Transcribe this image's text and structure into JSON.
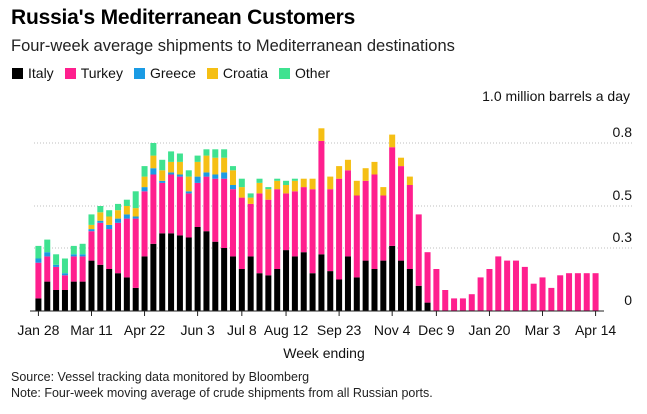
{
  "title": "Russia's Mediterranean Customers",
  "subtitle": "Four-week average shipments to Mediterranean destinations",
  "unit_label": "1.0 million barrels a day",
  "source": "Source: Vessel tracking data monitored by Bloomberg",
  "note": "Note: Four-week moving average of crude shipments from all Russian ports.",
  "colors": {
    "Italy": "#000000",
    "Turkey": "#ff1f8e",
    "Greece": "#1a9be4",
    "Croatia": "#f5bf14",
    "Other": "#3fe290",
    "gridline": "#bfbfbf",
    "baseline": "#222222"
  },
  "chart_data": {
    "type": "bar",
    "stacked": true,
    "title": "Russia's Mediterranean Customers",
    "subtitle": "Four-week average shipments to Mediterranean destinations",
    "xlabel": "Week ending",
    "ylabel": "1.0 million barrels a day",
    "ylim": [
      0,
      1.0
    ],
    "y_ticks": [
      0,
      0.3,
      0.5,
      0.8
    ],
    "y_tick_labels": [
      "0",
      "0.3",
      "0.5",
      "0.8"
    ],
    "x_tick_labels": [
      "Jan 28",
      "Mar 11",
      "Apr 22",
      "Jun 3",
      "Jul 8",
      "Aug 12",
      "Sep 23",
      "Nov 4",
      "Dec 9",
      "Jan 20",
      "Mar 3",
      "Apr 14"
    ],
    "x_tick_indices": [
      0,
      6,
      12,
      18,
      23,
      28,
      34,
      40,
      45,
      51,
      57,
      63
    ],
    "legend": [
      "Italy",
      "Turkey",
      "Greece",
      "Croatia",
      "Other"
    ],
    "series": [
      {
        "name": "Italy",
        "values": [
          0.06,
          0.14,
          0.1,
          0.1,
          0.14,
          0.14,
          0.24,
          0.22,
          0.2,
          0.18,
          0.16,
          0.11,
          0.26,
          0.32,
          0.37,
          0.37,
          0.36,
          0.35,
          0.4,
          0.38,
          0.33,
          0.3,
          0.26,
          0.2,
          0.26,
          0.18,
          0.17,
          0.2,
          0.29,
          0.26,
          0.28,
          0.18,
          0.27,
          0.19,
          0.15,
          0.26,
          0.16,
          0.24,
          0.2,
          0.24,
          0.31,
          0.24,
          0.2,
          0.12,
          0.04,
          0,
          0,
          0,
          0,
          0,
          0,
          0,
          0,
          0,
          0,
          0,
          0,
          0,
          0,
          0,
          0,
          0,
          0,
          0
        ]
      },
      {
        "name": "Turkey",
        "values": [
          0.17,
          0.12,
          0.11,
          0.07,
          0.12,
          0.12,
          0.14,
          0.2,
          0.19,
          0.24,
          0.28,
          0.33,
          0.31,
          0.33,
          0.24,
          0.28,
          0.28,
          0.21,
          0.21,
          0.26,
          0.3,
          0.33,
          0.32,
          0.34,
          0.25,
          0.38,
          0.36,
          0.38,
          0.27,
          0.31,
          0.31,
          0.4,
          0.54,
          0.39,
          0.48,
          0.41,
          0.39,
          0.38,
          0.45,
          0.31,
          0.47,
          0.45,
          0.4,
          0.34,
          0.24,
          0.2,
          0.1,
          0.06,
          0.06,
          0.08,
          0.16,
          0.2,
          0.26,
          0.24,
          0.24,
          0.21,
          0.13,
          0.16,
          0.11,
          0.17,
          0.18,
          0.18,
          0.18,
          0.18
        ]
      },
      {
        "name": "Greece",
        "values": [
          0.02,
          0.02,
          0.01,
          0.01,
          0.01,
          0.01,
          0.01,
          0.01,
          0.02,
          0.02,
          0.02,
          0.01,
          0.02,
          0.03,
          0.01,
          0.01,
          0.01,
          0.01,
          0.03,
          0.02,
          0.02,
          0.03,
          0.02,
          0,
          0,
          0,
          0,
          0,
          0,
          0,
          0,
          0,
          0,
          0,
          0,
          0,
          0,
          0,
          0,
          0,
          0,
          0,
          0,
          0,
          0,
          0,
          0,
          0,
          0,
          0,
          0,
          0,
          0,
          0,
          0,
          0,
          0,
          0,
          0,
          0,
          0,
          0,
          0,
          0
        ]
      },
      {
        "name": "Croatia",
        "values": [
          0,
          0,
          0,
          0,
          0,
          0,
          0.02,
          0.04,
          0.04,
          0.04,
          0.04,
          0.04,
          0.05,
          0.06,
          0.05,
          0.05,
          0.06,
          0.07,
          0.07,
          0.08,
          0.08,
          0.07,
          0.07,
          0.05,
          0.03,
          0.05,
          0.05,
          0.04,
          0.04,
          0.05,
          0.04,
          0.05,
          0.06,
          0.06,
          0.06,
          0.05,
          0.07,
          0.06,
          0.06,
          0.04,
          0.06,
          0.04,
          0.04,
          0,
          0,
          0,
          0,
          0,
          0,
          0,
          0,
          0,
          0,
          0,
          0,
          0,
          0,
          0,
          0,
          0,
          0,
          0,
          0,
          0
        ]
      },
      {
        "name": "Other",
        "values": [
          0.06,
          0.06,
          0.05,
          0.07,
          0.04,
          0.05,
          0.05,
          0.03,
          0.03,
          0.03,
          0.03,
          0.08,
          0.05,
          0.06,
          0.05,
          0.05,
          0.04,
          0.03,
          0.03,
          0.03,
          0.04,
          0.04,
          0.02,
          0.04,
          0.02,
          0.02,
          0.01,
          0.01,
          0.02,
          0.01,
          0,
          0,
          0,
          0,
          0,
          0,
          0,
          0,
          0,
          0,
          0,
          0,
          0,
          0,
          0,
          0,
          0,
          0,
          0,
          0,
          0,
          0,
          0,
          0,
          0,
          0,
          0,
          0,
          0,
          0,
          0,
          0,
          0,
          0
        ]
      }
    ]
  }
}
